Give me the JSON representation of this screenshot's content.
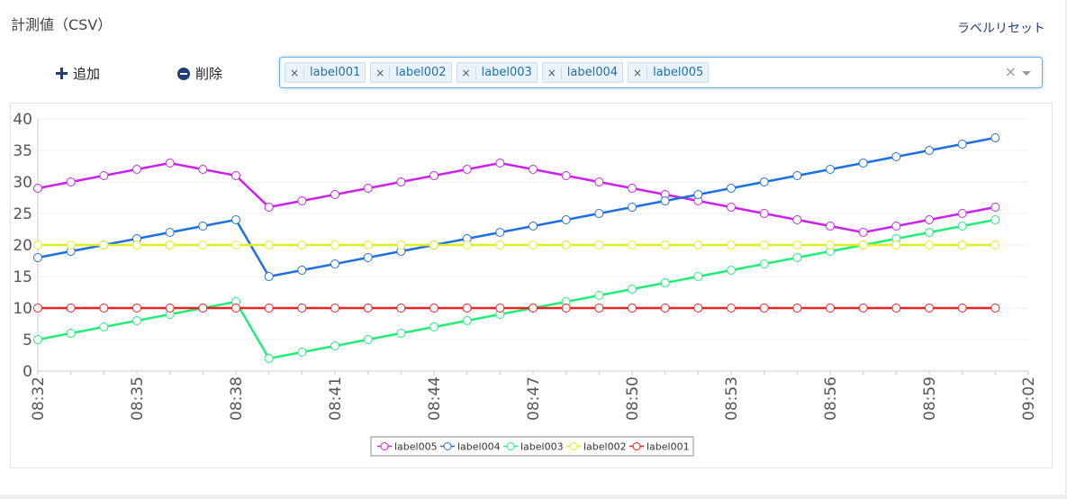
{
  "page": {
    "title": "計測値（CSV）",
    "reset_label": "ラベルリセット"
  },
  "toolbar": {
    "add_label": "追加",
    "delete_label": "削除"
  },
  "selector": {
    "selected": [
      "label001",
      "label002",
      "label003",
      "label004",
      "label005"
    ],
    "remove_symbol": "×",
    "clear_symbol": "×"
  },
  "chart_data": {
    "type": "line",
    "ylim": [
      0,
      40
    ],
    "yticks": [
      0,
      5,
      10,
      15,
      20,
      25,
      30,
      35,
      40
    ],
    "x_minutes": [
      32,
      33,
      34,
      35,
      36,
      37,
      38,
      39,
      40,
      41,
      42,
      43,
      44,
      45,
      46,
      47,
      48,
      49,
      50,
      51,
      52,
      53,
      54,
      55,
      56,
      57,
      58,
      59,
      60,
      61
    ],
    "x_ticks": [
      "08:32",
      "08:35",
      "08:38",
      "08:41",
      "08:44",
      "08:47",
      "08:50",
      "08:53",
      "08:56",
      "08:59",
      "09:02"
    ],
    "grid": true,
    "legend_position": "bottom-center",
    "series": [
      {
        "name": "label005",
        "color": "#cc22ee",
        "values": [
          29,
          30,
          31,
          32,
          33,
          32,
          31,
          26,
          27,
          28,
          29,
          30,
          31,
          32,
          33,
          32,
          31,
          30,
          29,
          28,
          27,
          26,
          25,
          24,
          23,
          22,
          23,
          24,
          25,
          26
        ]
      },
      {
        "name": "label004",
        "color": "#1f6fe0",
        "values": [
          18,
          19,
          20,
          21,
          22,
          23,
          24,
          15,
          16,
          17,
          18,
          19,
          20,
          21,
          22,
          23,
          24,
          25,
          26,
          27,
          28,
          29,
          30,
          31,
          32,
          33,
          34,
          35,
          36,
          37
        ]
      },
      {
        "name": "label003",
        "color": "#22ee77",
        "values": [
          5,
          6,
          7,
          8,
          9,
          10,
          11,
          2,
          3,
          4,
          5,
          6,
          7,
          8,
          9,
          10,
          11,
          12,
          13,
          14,
          15,
          16,
          17,
          18,
          19,
          20,
          21,
          22,
          23,
          24
        ]
      },
      {
        "name": "label002",
        "color": "#ddee22",
        "values": [
          20,
          20,
          20,
          20,
          20,
          20,
          20,
          20,
          20,
          20,
          20,
          20,
          20,
          20,
          20,
          20,
          20,
          20,
          20,
          20,
          20,
          20,
          20,
          20,
          20,
          20,
          20,
          20,
          20,
          20
        ]
      },
      {
        "name": "label001",
        "color": "#ee2222",
        "values": [
          10,
          10,
          10,
          10,
          10,
          10,
          10,
          10,
          10,
          10,
          10,
          10,
          10,
          10,
          10,
          10,
          10,
          10,
          10,
          10,
          10,
          10,
          10,
          10,
          10,
          10,
          10,
          10,
          10,
          10
        ]
      }
    ]
  }
}
